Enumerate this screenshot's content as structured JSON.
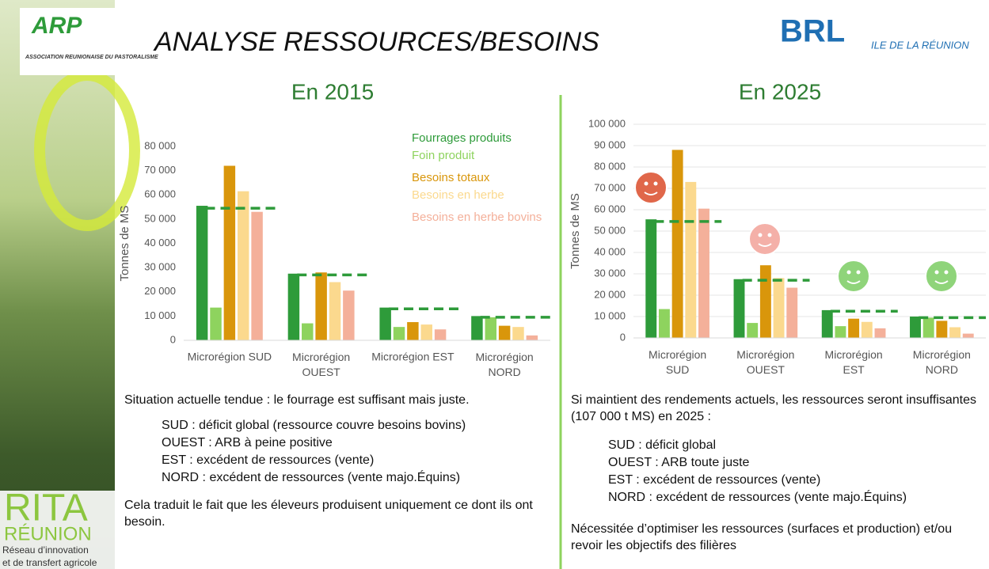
{
  "header": {
    "title": "ANALYSE RESSOURCES/BESOINS"
  },
  "logos": {
    "arp": "ARP",
    "arp_sub": "ASSOCIATION REUNIONAISE DU PASTORALISME",
    "brl": "BRL",
    "brl_sub": "ILE DE LA RÉUNION",
    "rita": "RITA",
    "rita_region": "RÉUNION",
    "rita_line1": "Réseau d’innovation",
    "rita_line2": "et de transfert agricole"
  },
  "chart_data": [
    {
      "type": "bar",
      "title": "En 2015",
      "y_label": "Tonnes de MS",
      "legend": true,
      "categories": [
        "Microrégion SUD",
        "Microrégion OUEST",
        "Microrégion EST",
        "Microrégion NORD"
      ],
      "series": [
        {
          "name": "Fourrages produits",
          "color": "#2e9b3a",
          "values": [
            55500,
            27500,
            13500,
            10000
          ]
        },
        {
          "name": "Foin produit",
          "color": "#8ed35e",
          "values": [
            13500,
            7000,
            5500,
            9500
          ]
        },
        {
          "name": "Besoins totaux",
          "color": "#d9960b",
          "values": [
            72000,
            28000,
            7500,
            6000
          ]
        },
        {
          "name": "Besoins en herbe",
          "color": "#fbd98e",
          "values": [
            61500,
            24000,
            6500,
            5500
          ]
        },
        {
          "name": "Besoins en herbe bovins",
          "color": "#f4b09a",
          "values": [
            53000,
            20500,
            4500,
            2000
          ]
        }
      ],
      "dashed_lines": {
        "color": "#2e9b3a",
        "values": [
          54500,
          27000,
          13000,
          9500
        ]
      },
      "ylim": [
        0,
        80000
      ],
      "yticks": [
        0,
        {
          "value": 10000,
          "label": "10 000"
        },
        {
          "value": 20000,
          "label": "20 000"
        },
        {
          "value": 30000,
          "label": "30 000"
        },
        {
          "value": 40000,
          "label": "40 000"
        },
        {
          "value": 50000,
          "label": "50 000"
        },
        {
          "value": 60000,
          "label": "60 000"
        },
        {
          "value": 70000,
          "label": "70 000"
        },
        {
          "value": 80000,
          "label": "80 000"
        }
      ],
      "grid": false
    },
    {
      "type": "bar",
      "title": "En 2025",
      "y_label": "Tonnes de MS",
      "legend": false,
      "categories": [
        "Microrégion SUD",
        "Microrégion OUEST",
        "Microrégion EST",
        "Microrégion NORD"
      ],
      "series": [
        {
          "color": "#2e9b3a",
          "values": [
            55500,
            27500,
            13000,
            10000
          ]
        },
        {
          "color": "#8ed35e",
          "values": [
            13500,
            7000,
            5500,
            9500
          ]
        },
        {
          "color": "#d9960b",
          "values": [
            88000,
            34000,
            9000,
            8000
          ]
        },
        {
          "color": "#fbd98e",
          "values": [
            73000,
            28000,
            7500,
            5000
          ]
        },
        {
          "color": "#f4b09a",
          "values": [
            60500,
            23500,
            4500,
            2000
          ]
        }
      ],
      "dashed_lines": {
        "color": "#2e9b3a",
        "values": [
          54500,
          27000,
          12500,
          9500
        ]
      },
      "ylim": [
        0,
        100000
      ],
      "yticks": [
        0,
        {
          "value": 10000,
          "label": "10 000"
        },
        {
          "value": 20000,
          "label": "20 000"
        },
        {
          "value": 30000,
          "label": "30 000"
        },
        {
          "value": 40000,
          "label": "40 000"
        },
        {
          "value": 50000,
          "label": "50 000"
        },
        {
          "value": 60000,
          "label": "60 000"
        },
        {
          "value": 70000,
          "label": "70 000"
        },
        {
          "value": 80000,
          "label": "80 000"
        },
        {
          "value": 90000,
          "label": "90 000"
        },
        {
          "value": 100000,
          "label": "100 000"
        }
      ],
      "grid": true
    }
  ],
  "left_text": {
    "intro": "Situation actuelle tendue : le fourrage est suffisant mais juste.",
    "items": [
      "SUD : déficit global (ressource couvre besoins bovins)",
      "OUEST : ARB à peine positive",
      "EST : excédent de ressources (vente)",
      "NORD : excédent de ressources (vente majo.Équins)"
    ],
    "conclusion": "Cela traduit le fait que les éleveurs produisent uniquement ce dont ils ont besoin."
  },
  "right_text": {
    "intro": "Si maintient des rendements actuels, les ressources seront insuffisantes (107 000 t MS) en 2025 :",
    "items": [
      "SUD : déficit global",
      "OUEST : ARB toute juste",
      "EST : excédent de ressources (vente)",
      "NORD : excédent de ressources (vente majo.Équins)"
    ],
    "conclusion": "Nécessitée d’optimiser les ressources (surfaces et production) et/ou revoir les objectifs des filières"
  }
}
